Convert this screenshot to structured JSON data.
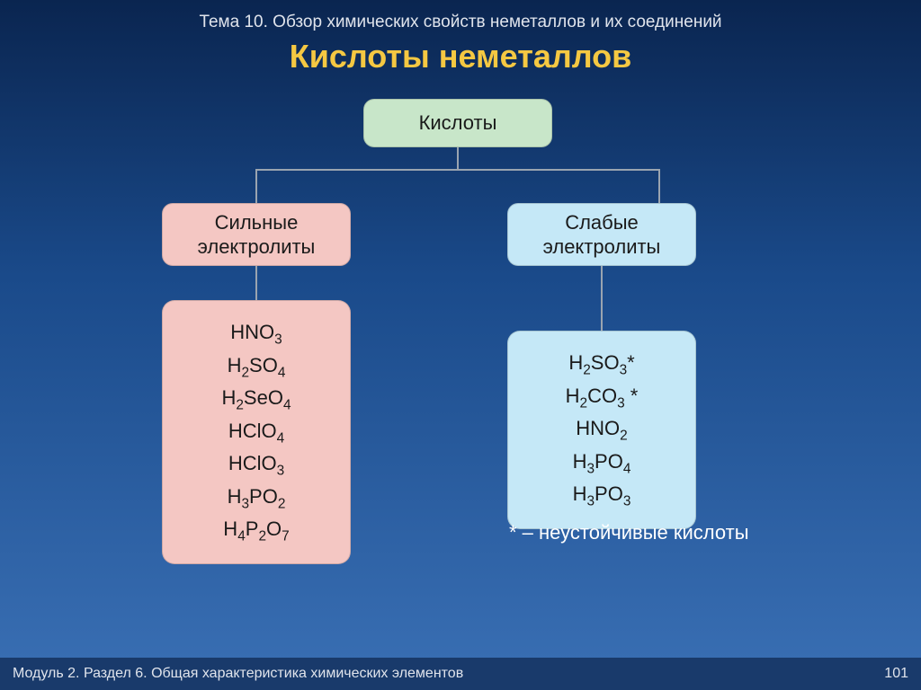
{
  "header": {
    "topic": "Тема 10. Обзор химических свойств неметаллов и их соединений",
    "title": "Кислоты неметаллов"
  },
  "diagram": {
    "root": {
      "label": "Кислоты",
      "bg": "#c8e6c9"
    },
    "left": {
      "label_line1": "Сильные",
      "label_line2": "электролиты",
      "bg": "#f4c7c3",
      "formulas": [
        "HNO_3",
        "H_2SO_4",
        "H_2SeO_4",
        "HClO_4",
        "HClO_3",
        "H_3PO_2",
        "H_4P_2O_7"
      ]
    },
    "right": {
      "label_line1": "Слабые",
      "label_line2": "электролиты",
      "bg": "#c5e8f7",
      "formulas": [
        "H_2SO_3*",
        "H_2CO_3 *",
        "HNO_2",
        "H_3PO_4",
        "H_3PO_3"
      ]
    },
    "connector_color": "#9aa4b0"
  },
  "footnote": "* – неустойчивые кислоты",
  "footer": {
    "text": "Модуль 2. Раздел 6. Общая характеристика химических элементов",
    "page": "101"
  },
  "style": {
    "title_color": "#f5c842",
    "bg_gradient_top": "#0a2550",
    "bg_gradient_bottom": "#3a70b5",
    "body_fontsize": 22,
    "title_fontsize": 36,
    "border_radius": 12
  }
}
